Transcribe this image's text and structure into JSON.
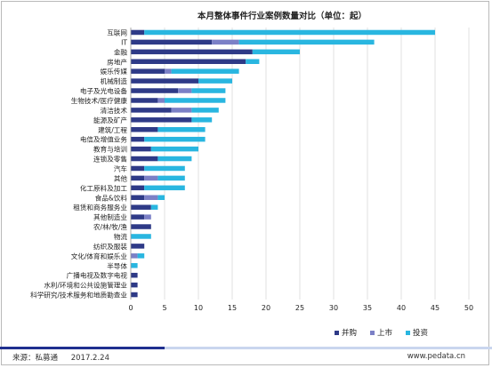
{
  "chart_data": {
    "type": "bar",
    "orientation": "horizontal",
    "stacked": true,
    "title": "本月整体事件行业案例数量对比（单位：起）",
    "categories": [
      "互联网",
      "IT",
      "金融",
      "房地产",
      "娱乐传媒",
      "机械制造",
      "电子及光电设备",
      "生物技术/医疗健康",
      "清洁技术",
      "能源及矿产",
      "建筑/工程",
      "电信及增值业务",
      "教育与培训",
      "连锁及零售",
      "汽车",
      "其他",
      "化工原料及加工",
      "食品&饮料",
      "租赁和商务服务业",
      "其他制造业",
      "农/林/牧/渔",
      "物流",
      "纺织及服装",
      "文化/体育和娱乐业",
      "半导体",
      "广播电视及数字电视",
      "水利/环境和公共设施管理业",
      "科学研究/技术服务和地质勘查业"
    ],
    "series": [
      {
        "name": "并购",
        "color": "#2e3a87",
        "values": [
          2,
          12,
          18,
          17,
          5,
          10,
          7,
          4,
          6,
          9,
          4,
          2,
          3,
          4,
          2,
          2,
          2,
          2,
          3,
          2,
          3,
          0,
          2,
          0,
          0,
          1,
          1,
          1
        ]
      },
      {
        "name": "上市",
        "color": "#7b80c6",
        "values": [
          0,
          4,
          0,
          0,
          1,
          0,
          2,
          1,
          3,
          0,
          0,
          0,
          0,
          0,
          0,
          2,
          0,
          2,
          0,
          1,
          0,
          0,
          0,
          1,
          0,
          0,
          0,
          0
        ]
      },
      {
        "name": "投资",
        "color": "#29b6e0",
        "values": [
          43,
          20,
          7,
          2,
          10,
          5,
          5,
          9,
          4,
          3,
          7,
          9,
          7,
          5,
          6,
          4,
          6,
          1,
          1,
          0,
          0,
          3,
          0,
          1,
          1,
          0,
          0,
          0
        ]
      }
    ],
    "xlim": [
      0,
      50
    ],
    "xticks": [
      0,
      5,
      10,
      15,
      20,
      25,
      30,
      35,
      40,
      45,
      50
    ],
    "grid": true,
    "legend": "bottom-right"
  },
  "footer": {
    "source": "来源：私募通",
    "date": "2017.2.24",
    "website": "www.pedata.cn"
  }
}
